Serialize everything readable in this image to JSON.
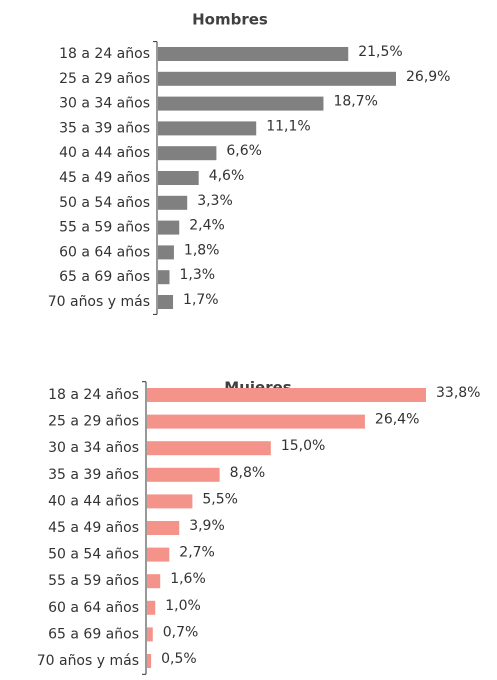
{
  "chart_data": [
    {
      "type": "bar",
      "orientation": "horizontal",
      "title": "Hombres",
      "color": "#808080",
      "categories": [
        "18 a 24 años",
        "25 a 29 años",
        "30 a 34 años",
        "35 a 39 años",
        "40 a 44 años",
        "45 a 49 años",
        "50 a 54 años",
        "55 a 59 años",
        "60 a 64 años",
        "65 a 69 años",
        "70 años y más"
      ],
      "values": [
        21.5,
        26.9,
        18.7,
        11.1,
        6.6,
        4.6,
        3.3,
        2.4,
        1.8,
        1.3,
        1.7
      ],
      "value_labels": [
        "21,5%",
        "26,9%",
        "18,7%",
        "11,1%",
        "6,6%",
        "4,6%",
        "3,3%",
        "2,4%",
        "1,8%",
        "1,3%",
        "1,7%"
      ]
    },
    {
      "type": "bar",
      "orientation": "horizontal",
      "title": "Mujeres",
      "color": "#f4938a",
      "categories": [
        "18 a 24 años",
        "25 a 29 años",
        "30 a 34 años",
        "35 a 39 años",
        "40 a 44 años",
        "45 a 49 años",
        "50 a 54 años",
        "55 a 59 años",
        "60 a 64 años",
        "65 a 69 años",
        "70 años y más"
      ],
      "values": [
        33.8,
        26.4,
        15.0,
        8.8,
        5.5,
        3.9,
        2.7,
        1.6,
        1.0,
        0.7,
        0.5
      ],
      "value_labels": [
        "33,8%",
        "26,4%",
        "15,0%",
        "8,8%",
        "5,5%",
        "3,9%",
        "2,7%",
        "1,6%",
        "1,0%",
        "0,7%",
        "0,5%"
      ]
    }
  ]
}
